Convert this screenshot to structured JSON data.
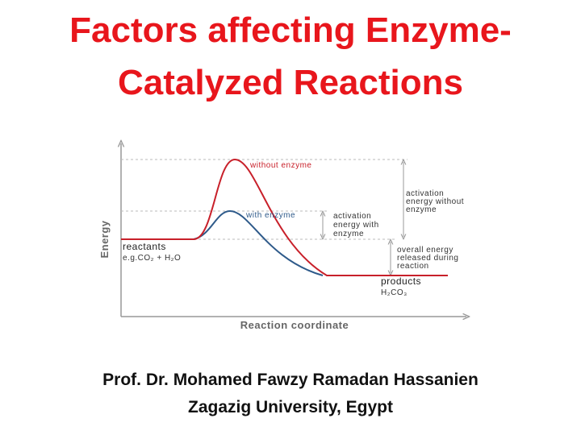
{
  "header": {
    "title_lines": [
      "Factors affecting Enzyme-",
      "Catalyzed Reactions"
    ]
  },
  "diagram": {
    "y_axis_label": "Energy",
    "x_axis_label": "Reaction coordinate",
    "curve_without_enzyme": "without enzyme",
    "curve_with_enzyme": "with enzyme",
    "reactants": [
      "reactants",
      "e.g.CO₂ + H₂O"
    ],
    "products": [
      "products",
      "H₂CO₃"
    ],
    "activation_without": [
      "activation",
      "energy without",
      "enzyme"
    ],
    "activation_with": [
      "activation",
      "energy with",
      "enzyme"
    ],
    "overall_energy": [
      "overall energy",
      "released during",
      "reaction"
    ]
  },
  "footer": {
    "author": "Prof. Dr. Mohamed Fawzy Ramadan Hassanien",
    "affiliation": "Zagazig University, Egypt"
  }
}
